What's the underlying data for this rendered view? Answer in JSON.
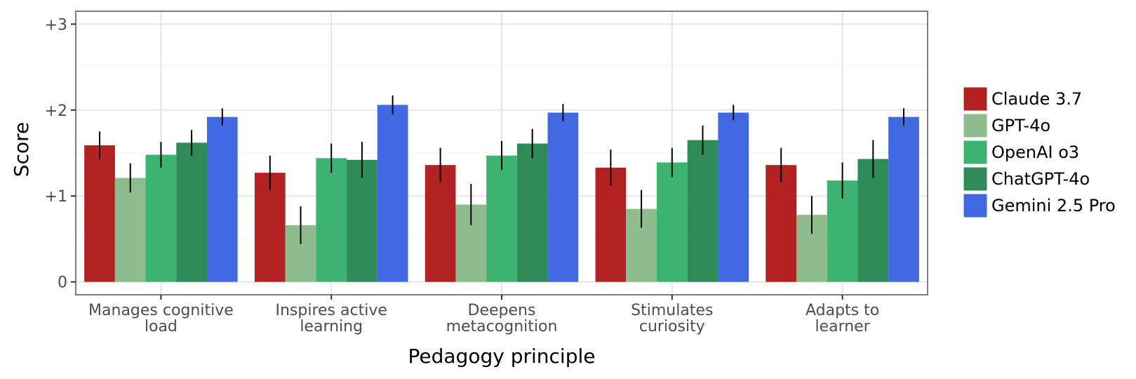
{
  "chart_data": {
    "type": "bar",
    "title": "",
    "xlabel": "Pedagogy principle",
    "ylabel": "Score",
    "ylim": [
      -0.15,
      3.15
    ],
    "yticks": [
      0,
      1,
      2,
      3
    ],
    "ytick_labels": [
      "0",
      "+1",
      "+2",
      "+3"
    ],
    "grid": true,
    "legend_position": "right",
    "categories": [
      [
        "Manages cognitive",
        "load"
      ],
      [
        "Inspires active",
        "learning"
      ],
      [
        "Deepens",
        "metacognition"
      ],
      [
        "Stimulates",
        "curiosity"
      ],
      [
        "Adapts to",
        "learner"
      ]
    ],
    "series": [
      {
        "name": "Claude 3.7",
        "color": "#b22222",
        "values": [
          1.59,
          1.27,
          1.36,
          1.33,
          1.36
        ],
        "error": [
          0.16,
          0.2,
          0.2,
          0.21,
          0.2
        ]
      },
      {
        "name": "GPT-4o",
        "color": "#8fbc8f",
        "values": [
          1.21,
          0.66,
          0.9,
          0.85,
          0.78
        ],
        "error": [
          0.17,
          0.22,
          0.24,
          0.22,
          0.22
        ]
      },
      {
        "name": "OpenAI o3",
        "color": "#3cb371",
        "values": [
          1.48,
          1.44,
          1.47,
          1.39,
          1.18
        ],
        "error": [
          0.15,
          0.17,
          0.17,
          0.17,
          0.21
        ]
      },
      {
        "name": "ChatGPT-4o",
        "color": "#2e8b57",
        "values": [
          1.62,
          1.42,
          1.61,
          1.65,
          1.43
        ],
        "error": [
          0.15,
          0.21,
          0.17,
          0.17,
          0.22
        ]
      },
      {
        "name": "Gemini 2.5 Pro",
        "color": "#4169e1",
        "values": [
          1.92,
          2.06,
          1.97,
          1.97,
          1.92
        ],
        "error": [
          0.1,
          0.11,
          0.1,
          0.09,
          0.1
        ]
      }
    ]
  }
}
